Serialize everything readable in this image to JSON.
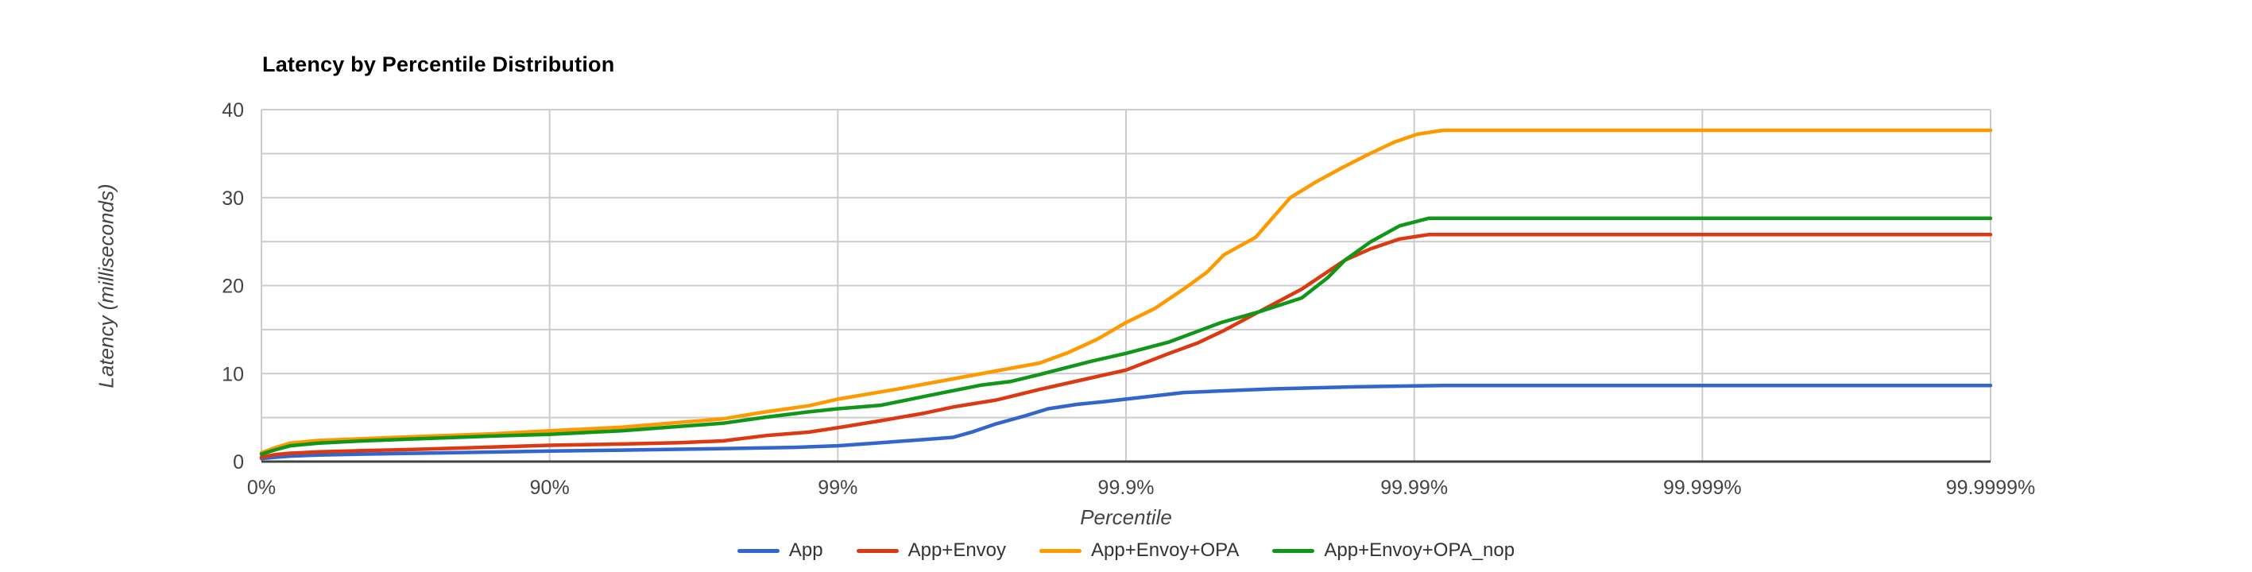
{
  "chart_data": {
    "type": "line",
    "title": "Latency by Percentile Distribution",
    "xlabel": "Percentile",
    "ylabel": "Latency (milliseconds)",
    "x_scale": "hdr-percentile (x position in units of log10(1/(1-p)), 0%..99.9999% = 0..6)",
    "x_ticks": [
      {
        "label": "0%",
        "unit": 0
      },
      {
        "label": "90%",
        "unit": 1
      },
      {
        "label": "99%",
        "unit": 2
      },
      {
        "label": "99.9%",
        "unit": 3
      },
      {
        "label": "99.99%",
        "unit": 4
      },
      {
        "label": "99.999%",
        "unit": 5
      },
      {
        "label": "99.9999%",
        "unit": 6
      }
    ],
    "ylim": [
      0,
      40
    ],
    "y_major_ticks": [
      0,
      10,
      20,
      30,
      40
    ],
    "y_minor_step": 5,
    "grid": true,
    "legend_position": "bottom",
    "colors": {
      "grid": "#cccccc",
      "baseline": "#424242",
      "tick_text": "#444444",
      "title_text": "#000000"
    },
    "series": [
      {
        "name": "App",
        "color": "#3366CC",
        "points_unit_ms": [
          [
            0,
            0.35
          ],
          [
            0.05,
            0.5
          ],
          [
            0.1,
            0.62
          ],
          [
            0.2,
            0.75
          ],
          [
            0.35,
            0.85
          ],
          [
            0.55,
            0.95
          ],
          [
            0.8,
            1.08
          ],
          [
            1,
            1.2
          ],
          [
            1.25,
            1.3
          ],
          [
            1.45,
            1.4
          ],
          [
            1.65,
            1.5
          ],
          [
            1.85,
            1.62
          ],
          [
            2,
            1.8
          ],
          [
            2.15,
            2.15
          ],
          [
            2.3,
            2.5
          ],
          [
            2.4,
            2.75
          ],
          [
            2.47,
            3.4
          ],
          [
            2.55,
            4.3
          ],
          [
            2.65,
            5.2
          ],
          [
            2.73,
            6.0
          ],
          [
            2.83,
            6.5
          ],
          [
            2.92,
            6.8
          ],
          [
            3,
            7.1
          ],
          [
            3.2,
            7.85
          ],
          [
            3.5,
            8.25
          ],
          [
            3.8,
            8.5
          ],
          [
            4,
            8.6
          ],
          [
            4.1,
            8.65
          ],
          [
            5,
            8.65
          ],
          [
            6,
            8.65
          ]
        ]
      },
      {
        "name": "App+Envoy",
        "color": "#DC3912",
        "points_unit_ms": [
          [
            0,
            0.5
          ],
          [
            0.05,
            0.8
          ],
          [
            0.1,
            0.95
          ],
          [
            0.2,
            1.1
          ],
          [
            0.35,
            1.25
          ],
          [
            0.55,
            1.4
          ],
          [
            0.8,
            1.65
          ],
          [
            1,
            1.85
          ],
          [
            1.25,
            2.0
          ],
          [
            1.45,
            2.15
          ],
          [
            1.6,
            2.35
          ],
          [
            1.75,
            2.95
          ],
          [
            1.9,
            3.35
          ],
          [
            2,
            3.85
          ],
          [
            2.15,
            4.65
          ],
          [
            2.3,
            5.5
          ],
          [
            2.4,
            6.2
          ],
          [
            2.55,
            7.0
          ],
          [
            2.7,
            8.2
          ],
          [
            2.85,
            9.3
          ],
          [
            3,
            10.4
          ],
          [
            3.15,
            12.3
          ],
          [
            3.25,
            13.5
          ],
          [
            3.34,
            14.9
          ],
          [
            3.46,
            17.0
          ],
          [
            3.61,
            19.6
          ],
          [
            3.76,
            22.9
          ],
          [
            3.85,
            24.2
          ],
          [
            3.95,
            25.3
          ],
          [
            4.05,
            25.8
          ],
          [
            5,
            25.8
          ],
          [
            6,
            25.8
          ]
        ]
      },
      {
        "name": "App+Envoy+OPA",
        "color": "#FF9900",
        "points_unit_ms": [
          [
            0,
            1.0
          ],
          [
            0.05,
            1.6
          ],
          [
            0.1,
            2.1
          ],
          [
            0.2,
            2.4
          ],
          [
            0.35,
            2.6
          ],
          [
            0.55,
            2.85
          ],
          [
            0.8,
            3.15
          ],
          [
            1,
            3.5
          ],
          [
            1.25,
            3.9
          ],
          [
            1.45,
            4.45
          ],
          [
            1.6,
            4.85
          ],
          [
            1.75,
            5.65
          ],
          [
            1.9,
            6.35
          ],
          [
            2,
            7.1
          ],
          [
            2.2,
            8.2
          ],
          [
            2.4,
            9.4
          ],
          [
            2.55,
            10.3
          ],
          [
            2.7,
            11.2
          ],
          [
            2.8,
            12.4
          ],
          [
            2.9,
            13.9
          ],
          [
            3,
            15.8
          ],
          [
            3.1,
            17.4
          ],
          [
            3.2,
            19.6
          ],
          [
            3.28,
            21.5
          ],
          [
            3.34,
            23.5
          ],
          [
            3.45,
            25.5
          ],
          [
            3.57,
            30.0
          ],
          [
            3.66,
            31.8
          ],
          [
            3.75,
            33.4
          ],
          [
            3.84,
            34.9
          ],
          [
            3.93,
            36.3
          ],
          [
            4.01,
            37.2
          ],
          [
            4.1,
            37.65
          ],
          [
            5,
            37.65
          ],
          [
            6,
            37.65
          ]
        ]
      },
      {
        "name": "App+Envoy+OPA_nop",
        "color": "#109618",
        "points_unit_ms": [
          [
            0,
            0.85
          ],
          [
            0.05,
            1.35
          ],
          [
            0.1,
            1.8
          ],
          [
            0.2,
            2.1
          ],
          [
            0.35,
            2.35
          ],
          [
            0.55,
            2.6
          ],
          [
            0.8,
            2.9
          ],
          [
            1,
            3.1
          ],
          [
            1.25,
            3.5
          ],
          [
            1.45,
            4.0
          ],
          [
            1.6,
            4.35
          ],
          [
            1.75,
            5.05
          ],
          [
            1.9,
            5.65
          ],
          [
            2,
            6.0
          ],
          [
            2.15,
            6.4
          ],
          [
            2.33,
            7.6
          ],
          [
            2.5,
            8.7
          ],
          [
            2.6,
            9.1
          ],
          [
            2.7,
            9.9
          ],
          [
            2.88,
            11.4
          ],
          [
            3,
            12.3
          ],
          [
            3.15,
            13.6
          ],
          [
            3.33,
            15.8
          ],
          [
            3.46,
            17.0
          ],
          [
            3.61,
            18.6
          ],
          [
            3.7,
            20.9
          ],
          [
            3.76,
            22.9
          ],
          [
            3.85,
            25.0
          ],
          [
            3.95,
            26.8
          ],
          [
            4.05,
            27.65
          ],
          [
            5,
            27.65
          ],
          [
            6,
            27.65
          ]
        ]
      }
    ],
    "plateau_values_ms": {
      "App": 8.65,
      "App+Envoy": 25.8,
      "App+Envoy+OPA": 37.65,
      "App+Envoy+OPA_nop": 27.65
    }
  }
}
